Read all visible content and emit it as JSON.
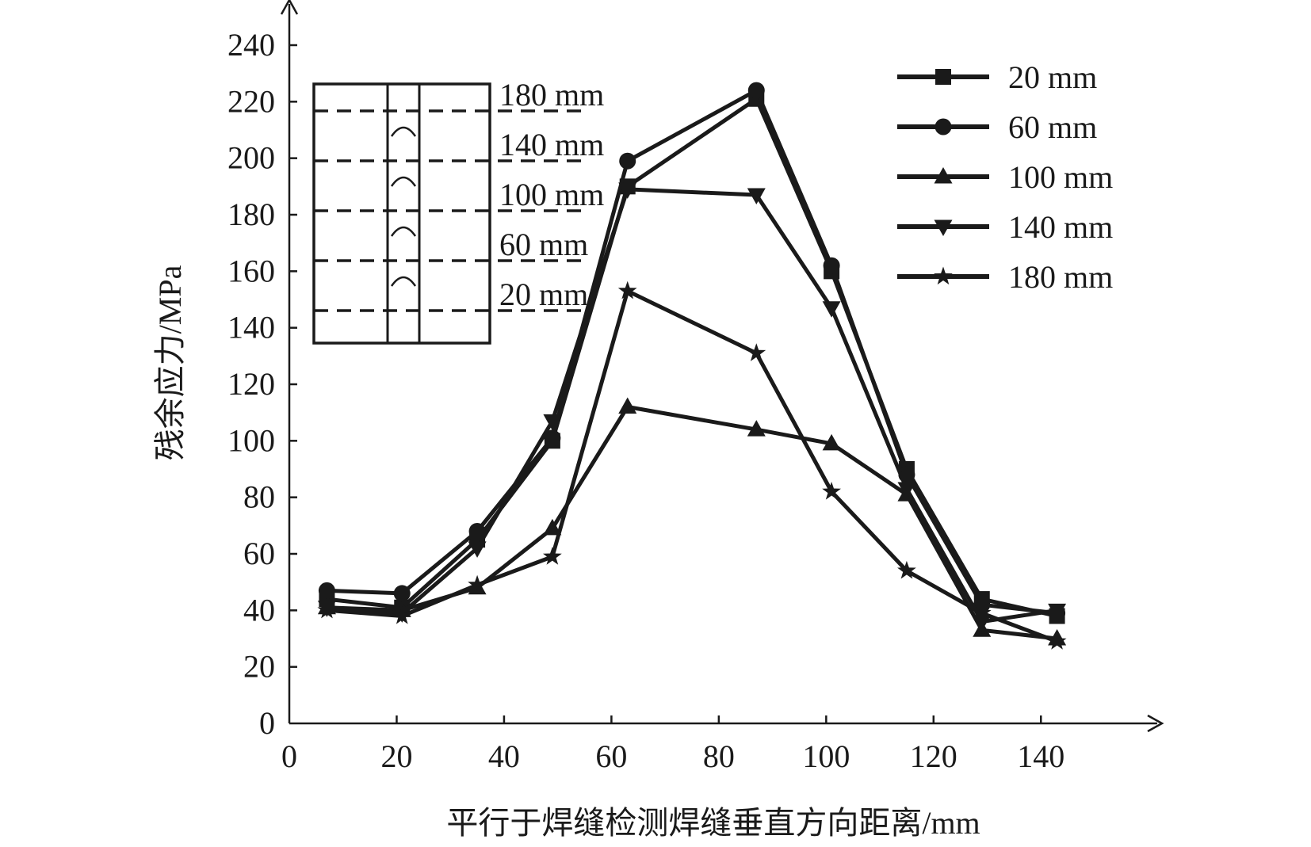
{
  "chart_data": {
    "type": "line",
    "title": "",
    "xlabel": "平行于焊缝检测焊缝垂直方向距离/mm",
    "ylabel": "残余应力/MPa",
    "xlim": [
      0,
      150
    ],
    "ylim": [
      0,
      240
    ],
    "x_ticks": [
      "0",
      "20",
      "40",
      "60",
      "80",
      "100",
      "120",
      "140"
    ],
    "y_ticks": [
      "0",
      "20",
      "40",
      "60",
      "80",
      "100",
      "120",
      "140",
      "160",
      "180",
      "200",
      "220",
      "240"
    ],
    "grid": false,
    "legend_position": "top-right",
    "x": [
      7,
      21,
      35,
      49,
      63,
      87,
      101,
      115,
      129,
      143
    ],
    "series": [
      {
        "name": "20 mm",
        "marker": "square",
        "values": [
          44,
          41,
          65,
          100,
          190,
          221,
          160,
          90,
          44,
          38
        ]
      },
      {
        "name": "60 mm",
        "marker": "circle",
        "values": [
          47,
          46,
          68,
          101,
          199,
          224,
          162,
          88,
          42,
          39
        ]
      },
      {
        "name": "100 mm",
        "marker": "triangle-up",
        "values": [
          41,
          40,
          48,
          69,
          112,
          104,
          99,
          81,
          33,
          30
        ]
      },
      {
        "name": "140 mm",
        "marker": "triangle-down",
        "values": [
          41,
          39,
          62,
          107,
          189,
          187,
          147,
          83,
          36,
          40
        ]
      },
      {
        "name": "180 mm",
        "marker": "star",
        "values": [
          40,
          38,
          49,
          59,
          153,
          131,
          82,
          54,
          39,
          29
        ]
      }
    ],
    "inset_labels": [
      "180 mm",
      "140 mm",
      "100 mm",
      "60 mm",
      "20 mm"
    ]
  },
  "colors": {
    "line": "#1a1a1a",
    "background": "#ffffff"
  }
}
